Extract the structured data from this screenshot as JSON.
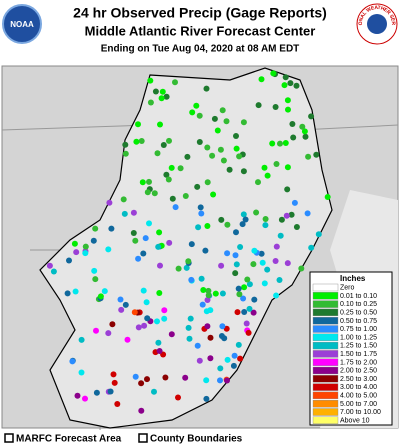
{
  "header": {
    "title": "24 hr Observed Precip (Gage Reports)",
    "subtitle": "Middle Atlantic River Forecast Center",
    "date": "Ending on Tue Aug 04, 2020 at 08 AM EDT"
  },
  "logos": {
    "left": "NOAA",
    "right": "NATIONAL WEATHER SERVICE"
  },
  "legend": {
    "title": "Inches",
    "items": [
      {
        "label": "Zero",
        "color": "#ffffff"
      },
      {
        "label": "0.01 to 0.10",
        "color": "#00ee00"
      },
      {
        "label": "0.10 to 0.25",
        "color": "#33bb33"
      },
      {
        "label": "0.25 to 0.50",
        "color": "#1e7a2e"
      },
      {
        "label": "0.50 to 0.75",
        "color": "#10689c"
      },
      {
        "label": "0.75 to 1.00",
        "color": "#2b8cff"
      },
      {
        "label": "1.00 to 1.25",
        "color": "#00e8ee"
      },
      {
        "label": "1.25 to 1.50",
        "color": "#00bcc4"
      },
      {
        "label": "1.50 to 1.75",
        "color": "#9b3fd6"
      },
      {
        "label": "1.75 to 2.00",
        "color": "#ff00ff"
      },
      {
        "label": "2.00 to 2.50",
        "color": "#8b008b"
      },
      {
        "label": "2.50 to 3.00",
        "color": "#8b0000"
      },
      {
        "label": "3.00 to 4.00",
        "color": "#d00000"
      },
      {
        "label": "4.00 to 5.00",
        "color": "#ff4500"
      },
      {
        "label": "5.00 to 7.00",
        "color": "#ff8c00"
      },
      {
        "label": "7.00 to 10.00",
        "color": "#ffb000"
      },
      {
        "label": "Above 10",
        "color": "#ffff66"
      }
    ]
  },
  "footer": [
    "MARFC Forecast Area",
    "County Boundaries"
  ]
}
